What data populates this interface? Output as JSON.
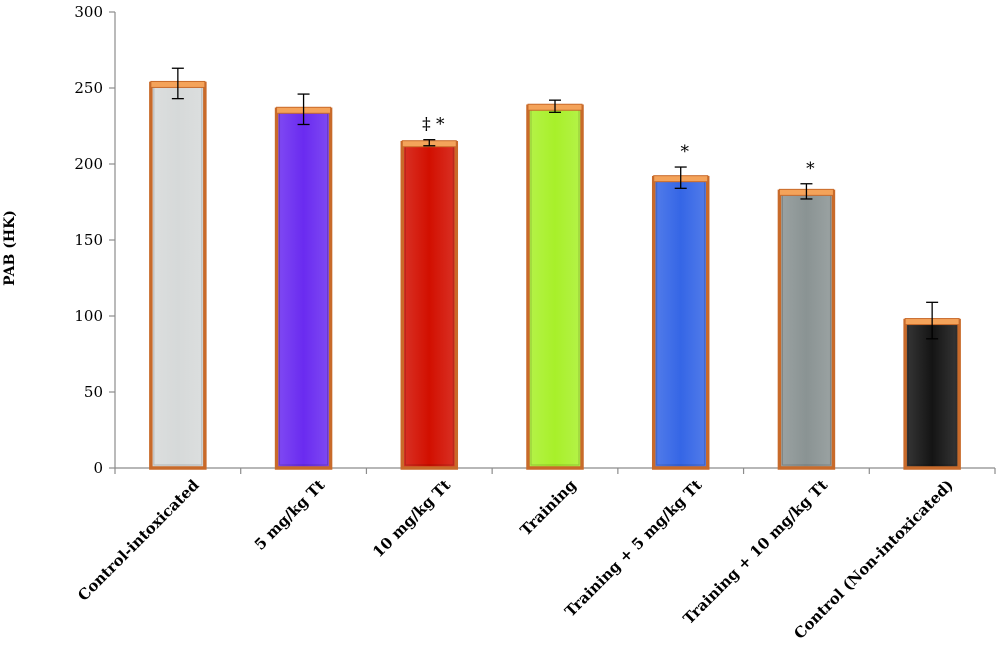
{
  "chart_data": {
    "type": "bar",
    "title": "",
    "xlabel": "",
    "ylabel": "PAB (HK)",
    "ylim": [
      0,
      300
    ],
    "yticks": [
      0,
      50,
      100,
      150,
      200,
      250,
      300
    ],
    "grid": false,
    "legend": "none",
    "categories": [
      "Control-intoxicated",
      "5 mg/kg Tt",
      "10 mg/kg Tt",
      "Training",
      "Training + 5 mg/kg Tt",
      "Training + 10 mg/kg Tt",
      "Control (Non-intoxicated)"
    ],
    "values": [
      253,
      236,
      214,
      238,
      191,
      182,
      97
    ],
    "errors": [
      10,
      10,
      2,
      4,
      7,
      5,
      12
    ],
    "annotations": [
      "",
      "",
      "‡ *",
      "",
      "*",
      "*",
      ""
    ],
    "colors": [
      "#d6d9d9",
      "#6a2bf0",
      "#d20f00",
      "#a8f02a",
      "#3566e6",
      "#8a9393",
      "#141414"
    ],
    "border_color": "#c86a2a",
    "cap_color": "#f4a35a"
  }
}
